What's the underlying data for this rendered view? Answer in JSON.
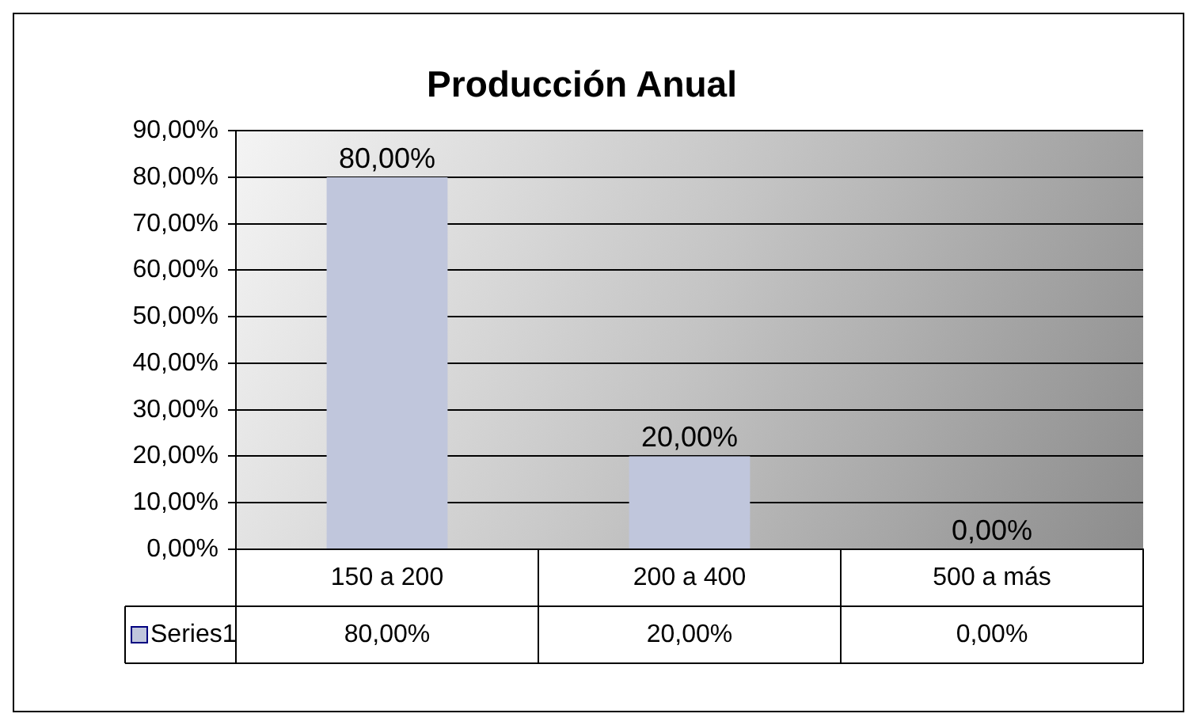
{
  "chart_data": {
    "type": "bar",
    "title": "Producción Anual",
    "categories": [
      "150 a 200",
      "200 a 400",
      "500 a más"
    ],
    "series": [
      {
        "name": "Series1",
        "color": "#c0c6dc",
        "values": [
          80,
          20,
          0
        ],
        "value_labels": [
          "80,00%",
          "20,00%",
          "0,00%"
        ]
      }
    ],
    "ylim": [
      0,
      90
    ],
    "yticks": [
      {
        "value": 0,
        "label": "0,00%"
      },
      {
        "value": 10,
        "label": "10,00%"
      },
      {
        "value": 20,
        "label": "20,00%"
      },
      {
        "value": 30,
        "label": "30,00%"
      },
      {
        "value": 40,
        "label": "40,00%"
      },
      {
        "value": 50,
        "label": "50,00%"
      },
      {
        "value": 60,
        "label": "60,00%"
      },
      {
        "value": 70,
        "label": "70,00%"
      },
      {
        "value": 80,
        "label": "80,00%"
      },
      {
        "value": 90,
        "label": "90,00%"
      }
    ],
    "grid": "y"
  }
}
